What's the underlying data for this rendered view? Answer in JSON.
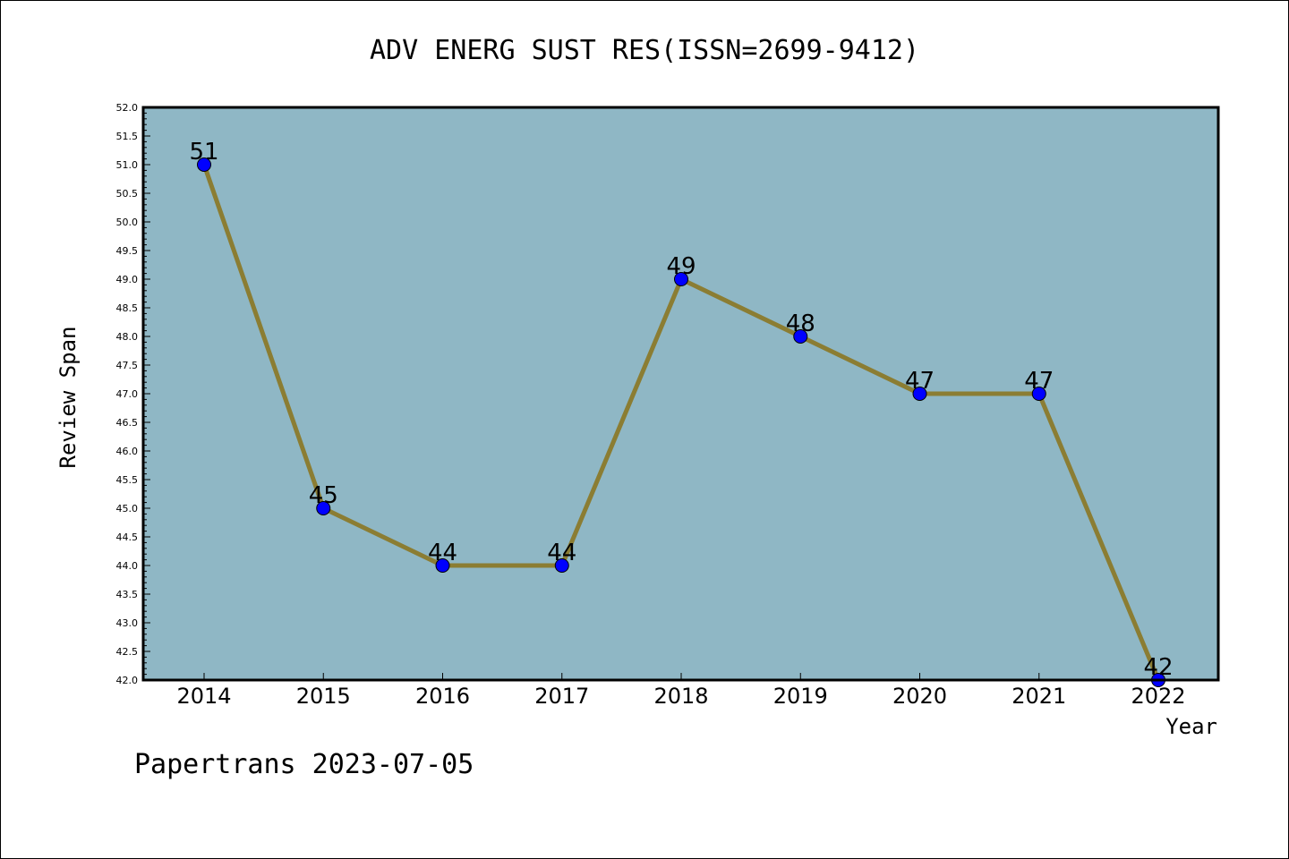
{
  "chart_data": {
    "type": "line",
    "title": "ADV ENERG SUST RES(ISSN=2699-9412)",
    "xlabel": "Year",
    "ylabel": "Review Span",
    "categories": [
      "2014",
      "2015",
      "2016",
      "2017",
      "2018",
      "2019",
      "2020",
      "2021",
      "2022"
    ],
    "series": [
      {
        "values": [
          51,
          45,
          44,
          44,
          49,
          48,
          47,
          47,
          42
        ]
      }
    ],
    "data_labels": [
      "51",
      "45",
      "44",
      "44",
      "49",
      "48",
      "47",
      "47",
      "42"
    ],
    "ylim": [
      42.0,
      52.0
    ],
    "ytick_labels": [
      "42.0",
      "42.5",
      "43.0",
      "43.5",
      "44.0",
      "44.5",
      "45.0",
      "45.5",
      "46.0",
      "46.5",
      "47.0",
      "47.5",
      "48.0",
      "48.5",
      "49.0",
      "49.5",
      "50.0",
      "50.5",
      "51.0",
      "51.5",
      "52.0"
    ],
    "grid": false,
    "colors": {
      "plot_background": "#8fb7c5",
      "line": "#8b7d33",
      "marker": "#0000ff"
    }
  },
  "footer": "Papertrans 2023-07-05"
}
